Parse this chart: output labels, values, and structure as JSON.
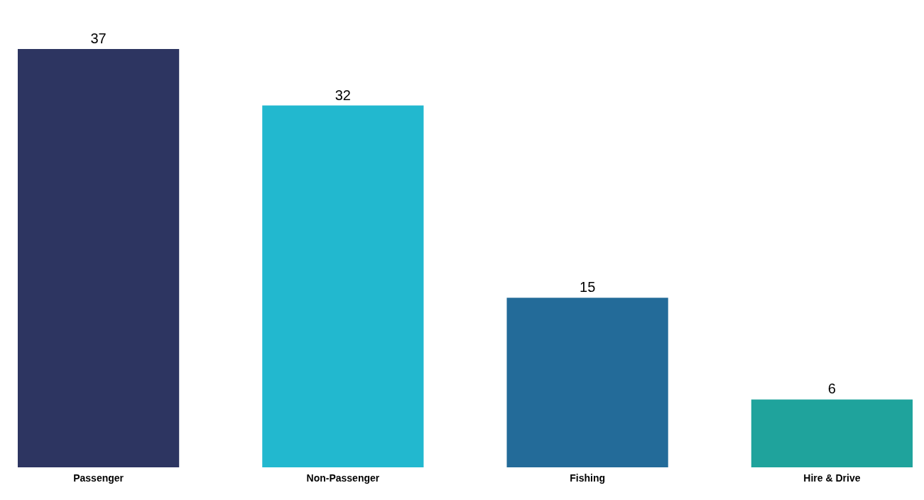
{
  "chart_data": {
    "type": "bar",
    "categories": [
      "Passenger",
      "Non-Passenger",
      "Fishing",
      "Hire & Drive"
    ],
    "values": [
      37,
      32,
      15,
      6
    ],
    "colors": [
      "#2d3561",
      "#22b8cf",
      "#236b99",
      "#1fa39c"
    ],
    "data_labels": true,
    "grid": false,
    "legend": false
  }
}
